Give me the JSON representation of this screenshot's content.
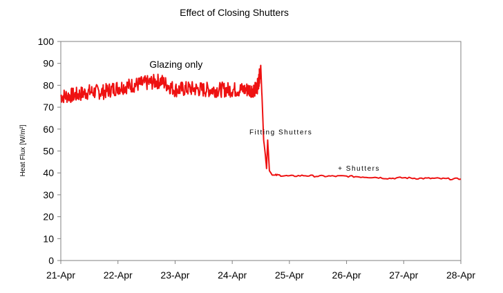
{
  "chart_data": {
    "type": "line",
    "title": "Effect of Closing Shutters",
    "xlabel": "",
    "ylabel": "Heat Flux [W/m²]",
    "ylim": [
      0,
      100
    ],
    "yticks": [
      0,
      10,
      20,
      30,
      40,
      50,
      60,
      70,
      80,
      90,
      100
    ],
    "xlim": [
      0,
      7
    ],
    "xticks": [
      0,
      1,
      2,
      3,
      4,
      5,
      6,
      7
    ],
    "xtick_labels": [
      "21-Apr",
      "22-Apr",
      "23-Apr",
      "24-Apr",
      "25-Apr",
      "26-Apr",
      "27-Apr",
      "28-Apr"
    ],
    "grid": false,
    "legend": "none",
    "series_color": "#ee1111",
    "series": [
      {
        "x": [
          0.0,
          0.25,
          0.5,
          0.75,
          1.0,
          1.25,
          1.5,
          1.75,
          2.0,
          2.25,
          2.5,
          2.75,
          3.0,
          3.25,
          3.4,
          3.45,
          3.5,
          3.52,
          3.55,
          3.58,
          3.6,
          3.62,
          3.65,
          3.7,
          3.8,
          4.0,
          4.25,
          4.5,
          4.75,
          5.0,
          5.25,
          5.5,
          5.75,
          6.0,
          6.25,
          6.5,
          6.75,
          7.0
        ],
        "y": [
          75,
          75.5,
          77,
          77,
          79,
          80,
          81,
          82,
          78,
          78.5,
          78,
          78,
          78,
          78,
          78,
          80,
          88,
          75,
          55,
          48,
          42,
          55,
          41,
          39,
          39,
          38.5,
          38.8,
          38.5,
          38.5,
          38.5,
          38.2,
          38,
          37.5,
          37.8,
          37.5,
          37.5,
          37.3,
          37.2
        ]
      }
    ],
    "annotations": [
      {
        "text": "Glazing only",
        "x": 1.55,
        "y": 88
      },
      {
        "text": "Fitting Shutters",
        "x": 3.3,
        "y": 57.5
      },
      {
        "text": "+ Shutters",
        "x": 4.85,
        "y": 41
      }
    ]
  }
}
